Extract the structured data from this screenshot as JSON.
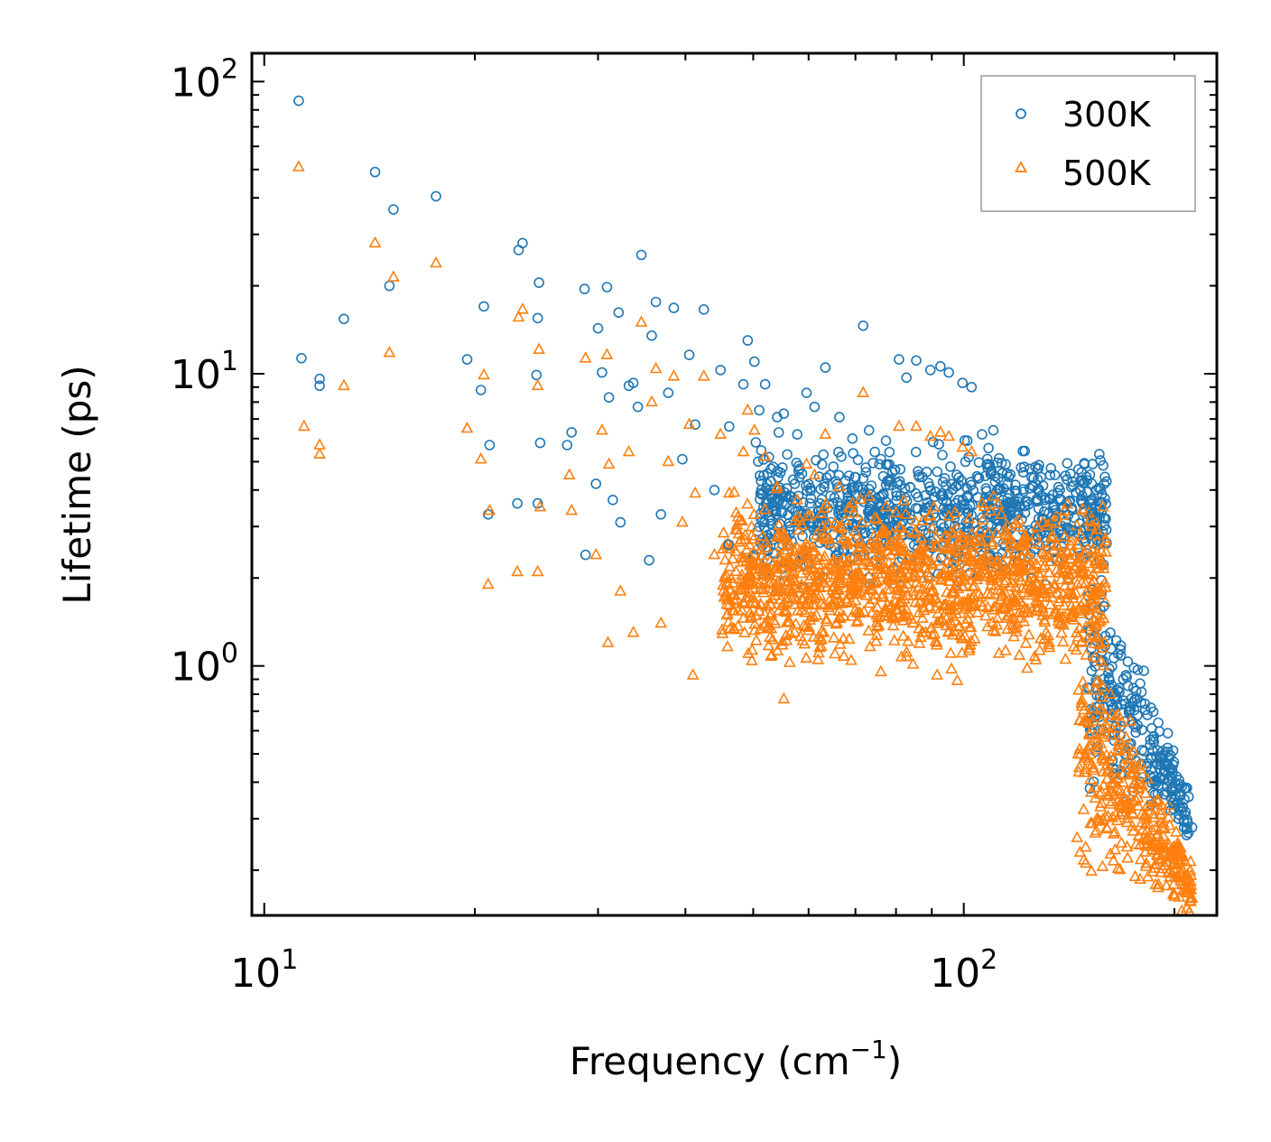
{
  "chart_data": {
    "type": "scatter",
    "xscale": "log",
    "yscale": "log",
    "xlabel": "Frequency (cm",
    "xlabel_sup": "−1",
    "xlabel_end": ")",
    "ylabel": "Lifetime (ps)",
    "xlim": [
      9.6,
      230
    ],
    "ylim": [
      0.14,
      125
    ],
    "legend_position": "top-right",
    "x_ticks": [
      {
        "value": 10,
        "base": "10",
        "exp": "1"
      },
      {
        "value": 100,
        "base": "10",
        "exp": "2"
      }
    ],
    "y_ticks": [
      {
        "value": 1,
        "base": "10",
        "exp": "0"
      },
      {
        "value": 10,
        "base": "10",
        "exp": "1"
      },
      {
        "value": 100,
        "base": "10",
        "exp": "2"
      }
    ],
    "series": [
      {
        "name": "300K",
        "marker": "circle",
        "color": "#1f77b4",
        "points": [
          [
            11.2,
            86
          ],
          [
            11.3,
            11.3
          ],
          [
            12.0,
            9.6
          ],
          [
            12.0,
            9.1
          ],
          [
            13.0,
            15.4
          ],
          [
            14.4,
            49
          ],
          [
            15.1,
            20
          ],
          [
            15.3,
            36.5
          ],
          [
            17.6,
            40.5
          ],
          [
            19.5,
            11.2
          ],
          [
            20.4,
            8.8
          ],
          [
            20.6,
            17
          ],
          [
            20.9,
            3.3
          ],
          [
            21.0,
            5.7
          ],
          [
            23.1,
            26.5
          ],
          [
            23.4,
            28
          ],
          [
            23.0,
            3.6
          ],
          [
            24.6,
            15.5
          ],
          [
            24.5,
            9.9
          ],
          [
            24.7,
            20.5
          ],
          [
            24.8,
            5.8
          ],
          [
            24.6,
            3.6
          ],
          [
            27.5,
            6.3
          ],
          [
            27.1,
            5.7
          ],
          [
            28.7,
            19.5
          ],
          [
            28.8,
            2.4
          ],
          [
            29.8,
            4.2
          ],
          [
            30.4,
            10.1
          ],
          [
            30.0,
            14.3
          ],
          [
            30.9,
            19.8
          ],
          [
            31.1,
            8.3
          ],
          [
            31.5,
            3.7
          ],
          [
            32.1,
            16.2
          ],
          [
            32.3,
            3.1
          ],
          [
            33.2,
            9.1
          ],
          [
            33.7,
            9.3
          ],
          [
            34.2,
            7.7
          ],
          [
            35.5,
            2.3
          ],
          [
            34.6,
            25.5
          ],
          [
            35.8,
            13.5
          ],
          [
            36.3,
            17.6
          ],
          [
            36.9,
            3.3
          ],
          [
            37.8,
            8.6
          ],
          [
            38.5,
            16.8
          ],
          [
            39.6,
            5.1
          ],
          [
            40.5,
            11.6
          ],
          [
            41.3,
            6.7
          ],
          [
            42.5,
            16.6
          ],
          [
            44.0,
            4.0
          ],
          [
            44.9,
            10.3
          ],
          [
            46.2,
            6.6
          ],
          [
            46.1,
            2.6
          ],
          [
            48.4,
            9.2
          ],
          [
            49.1,
            13.0
          ],
          [
            50.2,
            11.0
          ],
          [
            51.0,
            7.5
          ],
          [
            52.0,
            9.2
          ],
          [
            54.1,
            7.1
          ],
          [
            55.3,
            7.3
          ],
          [
            57.8,
            6.2
          ],
          [
            59.6,
            8.6
          ],
          [
            61.2,
            7.7
          ],
          [
            63.4,
            10.5
          ],
          [
            66.4,
            7.1
          ],
          [
            69.3,
            6.0
          ],
          [
            71.8,
            14.6
          ],
          [
            73.2,
            6.4
          ],
          [
            74.6,
            5.4
          ],
          [
            77.4,
            5.9
          ],
          [
            80.8,
            11.2
          ],
          [
            82.8,
            9.7
          ],
          [
            85.5,
            11.1
          ],
          [
            89.6,
            10.3
          ],
          [
            92.6,
            10.6
          ],
          [
            95.2,
            10.1
          ],
          [
            99.6,
            9.3
          ],
          [
            102.6,
            9.0
          ],
          [
            106.2,
            6.2
          ],
          [
            110.2,
            6.4
          ],
          [
            114.8,
            4.9
          ],
          [
            121.6,
            4.6
          ],
          [
            126.6,
            4.8
          ],
          [
            130.6,
            3.7
          ],
          [
            134.8,
            3.2
          ],
          [
            139.0,
            3.5
          ],
          [
            143.2,
            2.9
          ],
          [
            147.8,
            3.6
          ],
          [
            152.6,
            3.3
          ],
          [
            155.0,
            2.7
          ],
          [
            158.5,
            1.6
          ],
          [
            162.0,
            1.3
          ],
          [
            166.2,
            1.1
          ],
          [
            170.5,
            0.93
          ],
          [
            174.8,
            0.84
          ],
          [
            179.2,
            0.75
          ],
          [
            183.0,
            0.68
          ],
          [
            187.0,
            0.55
          ],
          [
            191.4,
            0.47
          ],
          [
            195.2,
            0.37
          ],
          [
            199.0,
            0.34
          ],
          [
            203.0,
            0.31
          ],
          [
            206.5,
            0.28
          ],
          [
            209.0,
            0.29
          ],
          [
            212.0,
            0.28
          ]
        ]
      },
      {
        "name": "500K",
        "marker": "triangle",
        "color": "#ff7f0e",
        "points": [
          [
            11.2,
            51
          ],
          [
            11.4,
            6.6
          ],
          [
            12.0,
            5.7
          ],
          [
            12.0,
            5.3
          ],
          [
            13.0,
            9.1
          ],
          [
            14.4,
            28
          ],
          [
            15.1,
            11.8
          ],
          [
            15.3,
            21.4
          ],
          [
            17.6,
            23.9
          ],
          [
            19.5,
            6.5
          ],
          [
            20.4,
            5.1
          ],
          [
            20.6,
            9.9
          ],
          [
            20.9,
            1.9
          ],
          [
            21.0,
            3.4
          ],
          [
            23.1,
            15.6
          ],
          [
            23.4,
            16.6
          ],
          [
            23.0,
            2.1
          ],
          [
            24.6,
            9.1
          ],
          [
            24.6,
            2.1
          ],
          [
            24.7,
            12.1
          ],
          [
            24.8,
            3.5
          ],
          [
            27.3,
            4.5
          ],
          [
            27.5,
            3.4
          ],
          [
            28.8,
            11.3
          ],
          [
            29.8,
            2.4
          ],
          [
            30.4,
            6.4
          ],
          [
            30.9,
            11.6
          ],
          [
            31.1,
            4.9
          ],
          [
            31.0,
            1.2
          ],
          [
            32.3,
            1.8
          ],
          [
            33.2,
            5.4
          ],
          [
            33.7,
            1.3
          ],
          [
            34.6,
            15.0
          ],
          [
            35.8,
            8.0
          ],
          [
            36.3,
            10.4
          ],
          [
            36.9,
            1.4
          ],
          [
            37.8,
            5.0
          ],
          [
            38.5,
            9.8
          ],
          [
            39.6,
            3.1
          ],
          [
            40.5,
            6.7
          ],
          [
            41.3,
            3.9
          ],
          [
            41.0,
            0.93
          ],
          [
            42.5,
            9.8
          ],
          [
            44.0,
            2.4
          ],
          [
            44.9,
            6.2
          ],
          [
            46.2,
            3.9
          ],
          [
            48.4,
            5.4
          ],
          [
            49.1,
            7.5
          ],
          [
            50.2,
            6.4
          ],
          [
            52.0,
            5.2
          ],
          [
            54.1,
            4.1
          ],
          [
            55.3,
            0.77
          ],
          [
            57.8,
            3.7
          ],
          [
            59.6,
            4.9
          ],
          [
            61.2,
            4.5
          ],
          [
            63.4,
            6.2
          ],
          [
            66.4,
            4.1
          ],
          [
            69.3,
            3.6
          ],
          [
            71.8,
            8.6
          ],
          [
            73.2,
            3.8
          ],
          [
            74.6,
            3.2
          ],
          [
            77.4,
            3.5
          ],
          [
            80.8,
            6.6
          ],
          [
            85.5,
            6.6
          ],
          [
            89.6,
            6.1
          ],
          [
            92.6,
            6.3
          ],
          [
            95.2,
            6.1
          ],
          [
            99.6,
            5.6
          ],
          [
            102.6,
            5.4
          ],
          [
            106.2,
            3.6
          ],
          [
            110.2,
            3.8
          ],
          [
            114.8,
            2.9
          ],
          [
            121.6,
            2.7
          ],
          [
            126.6,
            2.8
          ],
          [
            130.6,
            2.2
          ],
          [
            134.8,
            1.9
          ],
          [
            139.0,
            2.1
          ],
          [
            143.2,
            1.7
          ],
          [
            147.8,
            2.1
          ],
          [
            152.6,
            1.9
          ],
          [
            155.0,
            0.53
          ],
          [
            158.5,
            1.0
          ],
          [
            162.0,
            0.8
          ],
          [
            166.2,
            0.68
          ],
          [
            170.5,
            0.57
          ],
          [
            174.8,
            0.51
          ],
          [
            179.2,
            0.46
          ],
          [
            183.0,
            0.41
          ],
          [
            187.0,
            0.34
          ],
          [
            191.4,
            0.29
          ],
          [
            195.2,
            0.23
          ],
          [
            199.0,
            0.21
          ],
          [
            203.0,
            0.19
          ],
          [
            206.5,
            0.17
          ],
          [
            209.0,
            0.17
          ],
          [
            212.0,
            0.16
          ],
          [
            205.0,
            0.145
          ],
          [
            200.0,
            0.165
          ]
        ]
      }
    ],
    "clouds": [
      {
        "series": 0,
        "fmin": 50,
        "fmax": 160,
        "lo": 1.7,
        "hi": 6.5,
        "count": 900,
        "seed": 11
      },
      {
        "series": 1,
        "fmin": 45,
        "fmax": 160,
        "lo": 0.85,
        "hi": 4.4,
        "count": 1300,
        "seed": 23
      },
      {
        "series": 0,
        "fmin": 150,
        "fmax": 210,
        "lo": 0.28,
        "hi": 3.2,
        "count": 260,
        "seed": 37,
        "tail": true
      },
      {
        "series": 1,
        "fmin": 145,
        "fmax": 212,
        "lo": 0.15,
        "hi": 2.1,
        "count": 340,
        "seed": 41,
        "tail": true
      }
    ]
  }
}
